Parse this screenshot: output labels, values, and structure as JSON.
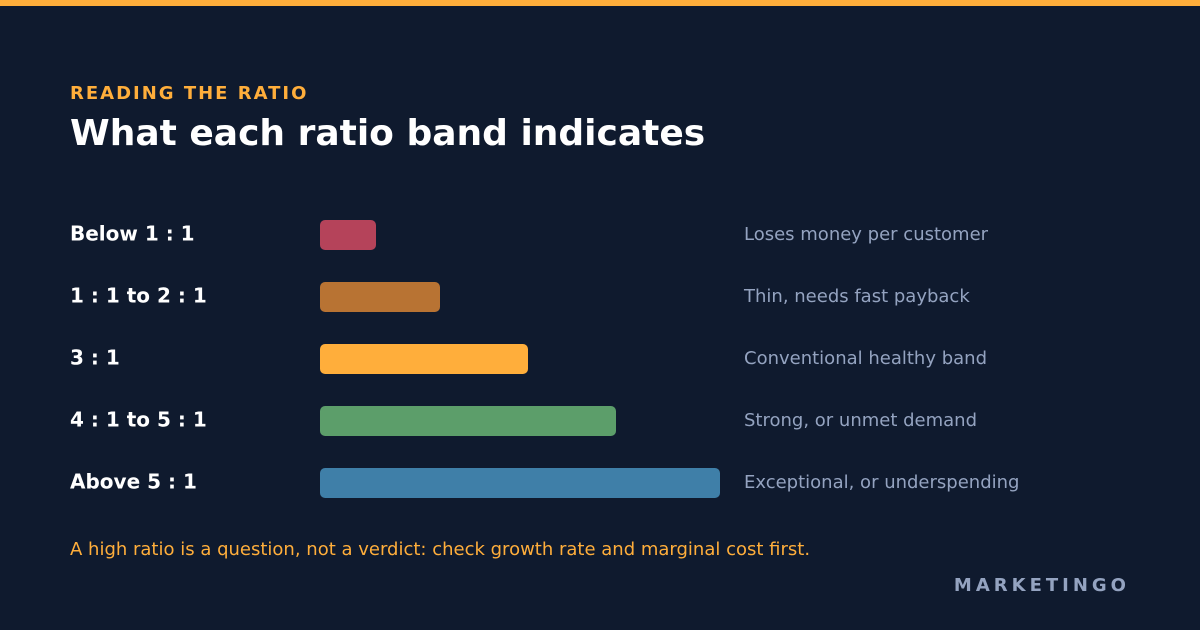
{
  "chart_data": {
    "type": "bar",
    "orientation": "horizontal",
    "eyebrow": "READING THE RATIO",
    "title": "What each ratio band indicates",
    "categories": [
      "Below 1 : 1",
      "1 : 1 to 2 : 1",
      "3 : 1",
      "4 : 1 to 5 : 1",
      "Above 5 : 1"
    ],
    "values": [
      14,
      30,
      52,
      74,
      100
    ],
    "colors": [
      "#b5435a",
      "#b87333",
      "#ffae3b",
      "#5c9e6a",
      "#3f7fa8"
    ],
    "xlim": [
      0,
      100
    ],
    "annotations": [
      "Loses money per customer",
      "Thin, needs fast payback",
      "Conventional healthy band",
      "Strong, or unmet demand",
      "Exceptional, or underspending"
    ],
    "note": "A high ratio is a question, not a verdict: check growth rate and marginal cost first.",
    "brand": "MARKETINGO"
  }
}
